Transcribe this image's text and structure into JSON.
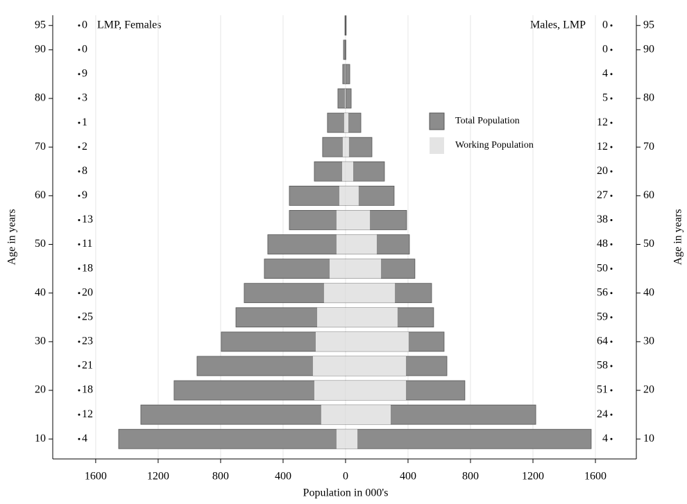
{
  "chart_data": {
    "type": "population-pyramid",
    "xlabel": "Population in 000's",
    "ylabel": "Age in years",
    "left_title": "LMP, Females",
    "right_title": "Males, LMP",
    "ages": [
      10,
      15,
      20,
      25,
      30,
      35,
      40,
      45,
      50,
      55,
      60,
      65,
      70,
      75,
      80,
      85,
      90,
      95
    ],
    "series": [
      {
        "name": "Total Population",
        "color": "#8c8c8c",
        "females": [
          1453,
          1311,
          1098,
          951,
          796,
          702,
          649,
          520,
          498,
          360,
          360,
          200,
          147,
          116,
          49,
          18,
          13,
          4
        ],
        "males": [
          1573,
          1218,
          764,
          649,
          631,
          564,
          551,
          444,
          409,
          391,
          311,
          249,
          169,
          98,
          36,
          27,
          2,
          4
        ]
      },
      {
        "name": "Working Population",
        "color": "#e4e4e4",
        "females": [
          58,
          156,
          200,
          209,
          191,
          182,
          138,
          102,
          58,
          58,
          40,
          22,
          18,
          9,
          4,
          2,
          0,
          0
        ],
        "males": [
          76,
          289,
          387,
          387,
          404,
          333,
          316,
          227,
          200,
          156,
          84,
          49,
          22,
          18,
          0,
          0,
          0,
          0
        ]
      }
    ],
    "female_annotations": [
      4,
      12,
      18,
      21,
      23,
      25,
      20,
      18,
      11,
      13,
      9,
      8,
      2,
      1,
      3,
      9,
      0,
      0
    ],
    "male_annotations": [
      4,
      24,
      51,
      58,
      64,
      59,
      56,
      50,
      48,
      38,
      27,
      20,
      12,
      12,
      5,
      4,
      0,
      0
    ],
    "xlim": [
      -1875,
      1862
    ],
    "xticks": [
      {
        "value": -1600,
        "label": "1600"
      },
      {
        "value": -1200,
        "label": "1200"
      },
      {
        "value": -800,
        "label": "800"
      },
      {
        "value": -400,
        "label": "400"
      },
      0,
      400,
      800,
      1200,
      1600
    ],
    "ylim": [
      5.9,
      97.1
    ],
    "yticks": [
      10,
      20,
      30,
      40,
      50,
      60,
      70,
      80,
      90,
      95
    ],
    "grid": true
  }
}
